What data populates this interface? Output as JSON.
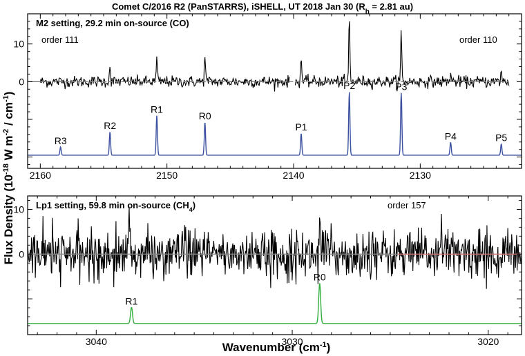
{
  "chart_data": [
    {
      "type": "line",
      "title": "Comet C/2016 R2 (PanSTARRS), iSHELL, UT 2018 Jan 30 (R",
      "title_sub": "h",
      "title_tail": " = 2.81 au)",
      "setting_label": "M2 setting, 29.2 min on-source (CO)",
      "order_left": "order 111",
      "order_right": "order 110",
      "xlim": [
        2161,
        2122
      ],
      "ylim": [
        -23,
        18
      ],
      "yticks": [
        0,
        10
      ],
      "xticks": [
        2160,
        2150,
        2140,
        2130
      ],
      "gap": [
        2140.3,
        2139.9
      ],
      "observed_series": {
        "color": "#000000",
        "x_range": [
          2160,
          2123
        ],
        "noise": 0.75,
        "lines": [
          {
            "x": 2154.5,
            "y": 4.5
          },
          {
            "x": 2150.8,
            "y": 6.5
          },
          {
            "x": 2147.0,
            "y": 7.5
          },
          {
            "x": 2139.4,
            "y": 7.0
          },
          {
            "x": 2135.6,
            "y": 18.0
          },
          {
            "x": 2131.5,
            "y": 13.5
          },
          {
            "x": 2127.6,
            "y": 2.5
          },
          {
            "x": 2123.6,
            "y": 3.0
          }
        ]
      },
      "model_fit": {
        "color": "#888888"
      },
      "model_spectrum": {
        "color": "#3a4fa0",
        "baseline": -19.5,
        "lines": [
          {
            "x": 2158.4,
            "label": "R3",
            "height": 2.2
          },
          {
            "x": 2154.5,
            "label": "R2",
            "height": 6.2
          },
          {
            "x": 2150.8,
            "label": "R1",
            "height": 10.5
          },
          {
            "x": 2147.0,
            "label": "R0",
            "height": 8.8
          },
          {
            "x": 2139.4,
            "label": "P1",
            "height": 5.8
          },
          {
            "x": 2135.6,
            "label": "P2",
            "height": 16.8
          },
          {
            "x": 2131.5,
            "label": "P3",
            "height": 16.5
          },
          {
            "x": 2127.6,
            "label": "P4",
            "height": 3.4
          },
          {
            "x": 2123.6,
            "label": "P5",
            "height": 3.0
          }
        ]
      }
    },
    {
      "type": "line",
      "setting_label": "Lp1 setting, 59.8 min on-source (CH",
      "setting_sub": "4",
      "setting_tail": ")",
      "order_label": "order 157",
      "xlim": [
        3043.5,
        3018.3
      ],
      "ylim": [
        -18,
        13
      ],
      "yticks": [
        0,
        10
      ],
      "xticks": [
        3040,
        3030,
        3020
      ],
      "xlabel": "Wavenumber (cm",
      "xlabel_sup": "-1",
      "xlabel_tail": ")",
      "observed_series": {
        "color": "#000000",
        "x_range": [
          3043.5,
          3018.3
        ],
        "noise": 2.6,
        "lines": [
          {
            "x": 3038.3,
            "y": 7.5
          },
          {
            "x": 3028.6,
            "y": 10.0
          },
          {
            "x": 3025.9,
            "y": 7.0
          },
          {
            "x": 3022.4,
            "y": 7.5
          }
        ]
      },
      "model_fit": {
        "color": "#888888",
        "color_end": "#d07070"
      },
      "model_spectrum": {
        "color": "#2fae3a",
        "baseline": -15.5,
        "lines": [
          {
            "x": 3038.2,
            "label": "R1",
            "height": 3.6
          },
          {
            "x": 3028.6,
            "label": "R0",
            "height": 9.0
          }
        ]
      }
    }
  ],
  "ylabel": "Flux Density (10",
  "ylabel_sup1": "-18",
  "ylabel_mid": " W m",
  "ylabel_sup2": "-2",
  "ylabel_mid2": " / cm",
  "ylabel_sup3": "-1",
  "ylabel_tail": ")"
}
